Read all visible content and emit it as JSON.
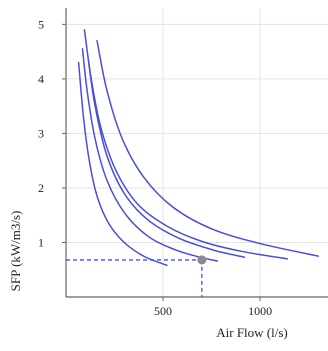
{
  "chart_data": {
    "type": "line",
    "title": "",
    "xlabel": "Air Flow (l/s)",
    "ylabel": "SFP (kW/m3/s)",
    "xlim": [
      0,
      1350
    ],
    "ylim": [
      0,
      5.3
    ],
    "x_ticks": [
      500,
      1000
    ],
    "y_ticks": [
      1,
      2,
      3,
      4,
      5
    ],
    "grid": true,
    "legend": "none",
    "colors": {
      "line": "#4a4fcf",
      "grid": "#e3e3e3",
      "axis": "#666666",
      "point": "#8a8a8a",
      "marker_line": "#3b55d6"
    },
    "series": [
      {
        "x": [
          65,
          90,
          120,
          160,
          220,
          300,
          400,
          520
        ],
        "y": [
          4.3,
          3.3,
          2.5,
          1.85,
          1.35,
          1.0,
          0.75,
          0.58
        ]
      },
      {
        "x": [
          85,
          110,
          150,
          210,
          300,
          420,
          560,
          690,
          780
        ],
        "y": [
          4.55,
          3.75,
          2.9,
          2.15,
          1.55,
          1.12,
          0.87,
          0.73,
          0.66
        ]
      },
      {
        "x": [
          115,
          150,
          210,
          300,
          420,
          580,
          760,
          920
        ],
        "y": [
          4.35,
          3.5,
          2.6,
          1.9,
          1.42,
          1.08,
          0.86,
          0.73
        ]
      },
      {
        "x": [
          95,
          130,
          180,
          260,
          370,
          520,
          700,
          900,
          1140
        ],
        "y": [
          4.9,
          4.0,
          3.1,
          2.3,
          1.7,
          1.3,
          1.02,
          0.84,
          0.7
        ]
      },
      {
        "x": [
          160,
          210,
          290,
          400,
          550,
          750,
          1000,
          1300
        ],
        "y": [
          4.7,
          3.8,
          2.9,
          2.2,
          1.65,
          1.25,
          0.98,
          0.75
        ]
      }
    ],
    "marker_point": {
      "x": 700,
      "y": 0.68
    }
  }
}
